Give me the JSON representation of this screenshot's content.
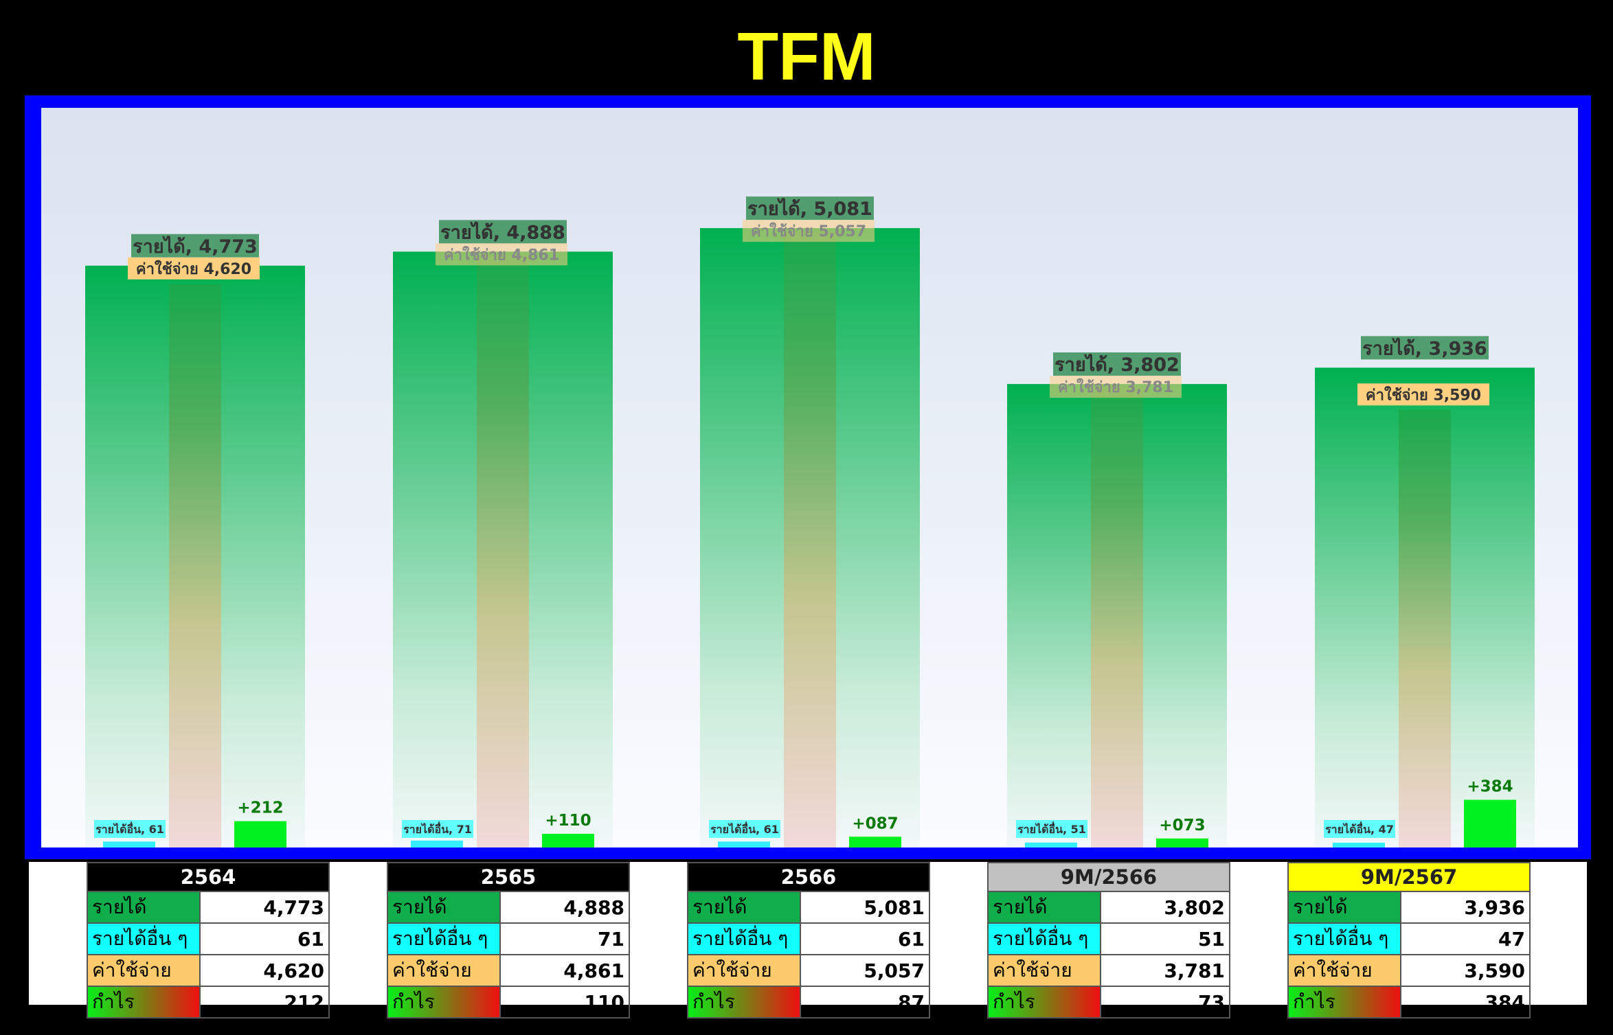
{
  "title": "TFM",
  "labels": {
    "revenue": "รายได้",
    "other": "รายได้อื่น ๆ",
    "expense": "ค่าใช้จ่าย",
    "profit": "กำไร",
    "chart_other": "รายได้อื่น"
  },
  "colors": {
    "frame": "#0000ff",
    "revenue": "#00b050",
    "other": "#33ffff",
    "expense": "#ffc000",
    "profit": "#00ff00",
    "title": "#ffff00"
  },
  "chart_data": {
    "type": "bar",
    "categories": [
      "2564",
      "2565",
      "2566",
      "9M/2566",
      "9M/2567"
    ],
    "series": [
      {
        "name": "รายได้",
        "values": [
          4773,
          4888,
          5081,
          3802,
          3936
        ]
      },
      {
        "name": "รายได้อื่น",
        "values": [
          61,
          71,
          61,
          51,
          47
        ]
      },
      {
        "name": "ค่าใช้จ่าย",
        "values": [
          4620,
          4861,
          5057,
          3781,
          3590
        ]
      },
      {
        "name": "กำไร",
        "values": [
          212,
          110,
          87,
          73,
          384
        ]
      }
    ],
    "revenue_labels": [
      "4,773",
      "4,888",
      "5,081",
      "3,802",
      "3,936"
    ],
    "expense_labels": [
      "4,620",
      "4,861",
      "5,057",
      "3,781",
      "3,590"
    ],
    "other_labels": [
      "61",
      "71",
      "61",
      "51",
      "47"
    ],
    "profit_labels": [
      "+212",
      "+110",
      "+087",
      "+073",
      "+384"
    ],
    "ylim": [
      0,
      5300
    ]
  },
  "tables": [
    {
      "header": "2564",
      "header_color": "#000000",
      "header_text": "#ffffff",
      "revenue": "4,773",
      "other": "61",
      "expense": "4,620",
      "profit": "212"
    },
    {
      "header": "2565",
      "header_color": "#000000",
      "header_text": "#ffffff",
      "revenue": "4,888",
      "other": "71",
      "expense": "4,861",
      "profit": "110"
    },
    {
      "header": "2566",
      "header_color": "#000000",
      "header_text": "#ffffff",
      "revenue": "5,081",
      "other": "61",
      "expense": "5,057",
      "profit": "87"
    },
    {
      "header": "9M/2566",
      "header_color": "#c0c0c0",
      "header_text": "#222222",
      "revenue": "3,802",
      "other": "51",
      "expense": "3,781",
      "profit": "73"
    },
    {
      "header": "9M/2567",
      "header_color": "#ffff00",
      "header_text": "#222222",
      "revenue": "3,936",
      "other": "47",
      "expense": "3,590",
      "profit": "384"
    }
  ]
}
